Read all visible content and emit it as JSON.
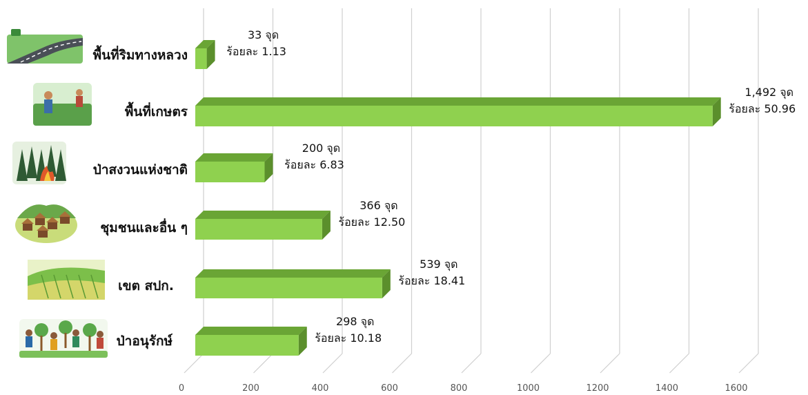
{
  "chart_data": {
    "type": "bar",
    "orientation": "horizontal",
    "style": "3d",
    "title": "",
    "xlabel": "",
    "ylabel": "",
    "xlim": [
      0,
      1600
    ],
    "ticks": [
      "0",
      "200",
      "400",
      "600",
      "800",
      "1000",
      "1200",
      "1400",
      "1600"
    ],
    "grid": true,
    "categories": [
      "พื้นที่ริมทางหลวง",
      "พื้นที่เกษตร",
      "ป่าสงวนแห่งชาติ",
      "ชุมชนและอื่น ๆ",
      "เขต สปก.",
      "ป่าอนุรักษ์"
    ],
    "category_icons": [
      "highway-road-icon",
      "farmers-field-icon",
      "forest-fire-icon",
      "village-huts-icon",
      "farmland-hills-icon",
      "tree-planting-people-icon"
    ],
    "values": [
      33,
      1492,
      200,
      366,
      539,
      298
    ],
    "value_labels": [
      "33 จุด",
      "1,492 จุด",
      "200 จุด",
      "366 จุด",
      "539 จุด",
      "298 จุด"
    ],
    "percent_labels": [
      "ร้อยละ 1.13",
      "ร้อยละ 50.96",
      "ร้อยละ 6.83",
      "ร้อยละ 12.50",
      "ร้อยละ 18.41",
      "ร้อยละ 10.18"
    ],
    "colors": {
      "bar_front": "#8fd14f",
      "bar_top": "#6aa535",
      "bar_side": "#5b8f2c",
      "grid": "#cfcfcf"
    }
  }
}
